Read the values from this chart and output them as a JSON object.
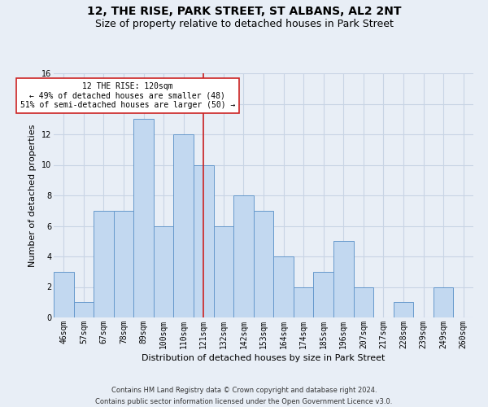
{
  "title": "12, THE RISE, PARK STREET, ST ALBANS, AL2 2NT",
  "subtitle": "Size of property relative to detached houses in Park Street",
  "xlabel": "Distribution of detached houses by size in Park Street",
  "ylabel": "Number of detached properties",
  "categories": [
    "46sqm",
    "57sqm",
    "67sqm",
    "78sqm",
    "89sqm",
    "100sqm",
    "110sqm",
    "121sqm",
    "132sqm",
    "142sqm",
    "153sqm",
    "164sqm",
    "174sqm",
    "185sqm",
    "196sqm",
    "207sqm",
    "217sqm",
    "228sqm",
    "239sqm",
    "249sqm",
    "260sqm"
  ],
  "values": [
    3,
    1,
    7,
    7,
    13,
    6,
    12,
    10,
    6,
    8,
    7,
    4,
    2,
    3,
    5,
    2,
    0,
    1,
    0,
    2,
    0
  ],
  "bar_color": "#c2d8f0",
  "bar_edgecolor": "#6699cc",
  "vline_x_index": 7,
  "vline_color": "#cc2222",
  "annotation_text": "12 THE RISE: 120sqm\n← 49% of detached houses are smaller (48)\n51% of semi-detached houses are larger (50) →",
  "annotation_box_edgecolor": "#cc2222",
  "annotation_box_facecolor": "#ffffff",
  "ylim": [
    0,
    16
  ],
  "yticks": [
    0,
    2,
    4,
    6,
    8,
    10,
    12,
    14,
    16
  ],
  "grid_color": "#c8d4e4",
  "background_color": "#e8eef6",
  "plot_bg_color": "#e8eef6",
  "footer_line1": "Contains HM Land Registry data © Crown copyright and database right 2024.",
  "footer_line2": "Contains public sector information licensed under the Open Government Licence v3.0.",
  "title_fontsize": 10,
  "subtitle_fontsize": 9,
  "xlabel_fontsize": 8,
  "ylabel_fontsize": 8,
  "tick_fontsize": 7,
  "annot_fontsize": 7,
  "footer_fontsize": 6
}
